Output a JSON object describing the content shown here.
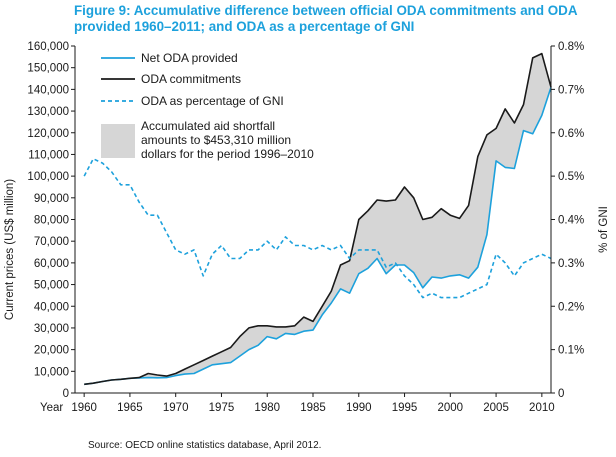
{
  "chart_data": {
    "type": "line",
    "title": "Figure 9: Accumulative difference between official ODA commitments and ODA provided 1960–2011; and ODA as a percentage of GNI",
    "source": "Source: OECD online statistics database, April 2012.",
    "xlabel": "Year",
    "ylabel": "Current prices (US$ million)",
    "y2label": "% of GNI",
    "xlim": [
      1959,
      2011
    ],
    "ylim": [
      0,
      160000
    ],
    "y2lim": [
      0,
      0.008
    ],
    "xticks": [
      1960,
      1965,
      1970,
      1975,
      1980,
      1985,
      1990,
      1995,
      2000,
      2005,
      2010
    ],
    "yticks": [
      0,
      10000,
      20000,
      30000,
      40000,
      50000,
      60000,
      70000,
      80000,
      90000,
      100000,
      110000,
      120000,
      130000,
      140000,
      150000,
      160000
    ],
    "ytick_labels": [
      "0",
      "10,000",
      "20,000",
      "30,000",
      "40,000",
      "50,000",
      "60,000",
      "70,000",
      "80,000",
      "90,000",
      "100,000",
      "110,000",
      "120,000",
      "130,000",
      "140,000",
      "150,000",
      "160,000"
    ],
    "y2ticks": [
      0,
      0.001,
      0.002,
      0.003,
      0.004,
      0.005,
      0.006,
      0.007,
      0.008
    ],
    "y2tick_labels": [
      "0",
      "0.1%",
      "0.2%",
      "0.3%",
      "0.4%",
      "0.5%",
      "0.6%",
      "0.7%",
      "0.8%"
    ],
    "legend_position": "top-left",
    "x": [
      1960,
      1961,
      1962,
      1963,
      1964,
      1965,
      1966,
      1967,
      1968,
      1969,
      1970,
      1971,
      1972,
      1973,
      1974,
      1975,
      1976,
      1977,
      1978,
      1979,
      1980,
      1981,
      1982,
      1983,
      1984,
      1985,
      1986,
      1987,
      1988,
      1989,
      1990,
      1991,
      1992,
      1993,
      1994,
      1995,
      1996,
      1997,
      1998,
      1999,
      2000,
      2001,
      2002,
      2003,
      2004,
      2005,
      2006,
      2007,
      2008,
      2009,
      2010,
      2011
    ],
    "series": [
      {
        "name": "Net ODA provided",
        "axis": "left",
        "style": "solid",
        "color": "#1da1dc",
        "values": [
          4000,
          4500,
          5300,
          6000,
          6300,
          6800,
          6900,
          7100,
          7000,
          7100,
          8000,
          8700,
          9000,
          11000,
          13000,
          13500,
          14000,
          17000,
          20000,
          22000,
          26000,
          25000,
          27500,
          27000,
          28500,
          29000,
          36000,
          41500,
          48000,
          46000,
          55000,
          57500,
          62000,
          55000,
          59000,
          59000,
          55500,
          48500,
          53500,
          53000,
          54000,
          54500,
          53000,
          58000,
          73000,
          107000,
          104000,
          103500,
          121000,
          119500,
          128000,
          141000
        ]
      },
      {
        "name": "ODA commitments",
        "axis": "left",
        "style": "solid",
        "color": "#1a1a1a",
        "values": [
          4000,
          4500,
          5300,
          6000,
          6300,
          6800,
          7100,
          9000,
          8300,
          7800,
          9000,
          11000,
          13000,
          15000,
          17000,
          19000,
          21000,
          26000,
          30000,
          31000,
          31000,
          30500,
          30500,
          31000,
          35000,
          33000,
          40000,
          47000,
          59000,
          61000,
          80000,
          84000,
          89000,
          88500,
          89000,
          95000,
          90000,
          80000,
          81000,
          85000,
          82000,
          80500,
          86500,
          109000,
          119000,
          122000,
          131000,
          124500,
          133000,
          154500,
          156500,
          141000
        ]
      },
      {
        "name": "ODA as percentage of GNI",
        "axis": "right",
        "style": "dashed",
        "color": "#1da1dc",
        "values": [
          0.005,
          0.0054,
          0.0053,
          0.0051,
          0.0048,
          0.0048,
          0.0044,
          0.0041,
          0.0041,
          0.0037,
          0.0033,
          0.0032,
          0.0033,
          0.0027,
          0.0032,
          0.0034,
          0.0031,
          0.0031,
          0.0033,
          0.0033,
          0.0035,
          0.0033,
          0.0036,
          0.0034,
          0.0034,
          0.0033,
          0.0034,
          0.0033,
          0.0034,
          0.0031,
          0.0033,
          0.0033,
          0.0033,
          0.0029,
          0.003,
          0.0027,
          0.0025,
          0.0022,
          0.0023,
          0.0022,
          0.0022,
          0.0022,
          0.0023,
          0.0024,
          0.0025,
          0.0032,
          0.003,
          0.0027,
          0.003,
          0.0031,
          0.0032,
          0.0031
        ]
      }
    ],
    "shaded_area": {
      "label": "Accumulated aid shortfall amounts to $453,310 million dollars for the period 1996–2010",
      "label_lines": [
        "Accumulated aid shortfall",
        "amounts to $453,310 million",
        "dollars for the period 1996–2010"
      ],
      "color": "#d6d6d6",
      "between": [
        "ODA commitments",
        "Net ODA provided"
      ]
    }
  }
}
